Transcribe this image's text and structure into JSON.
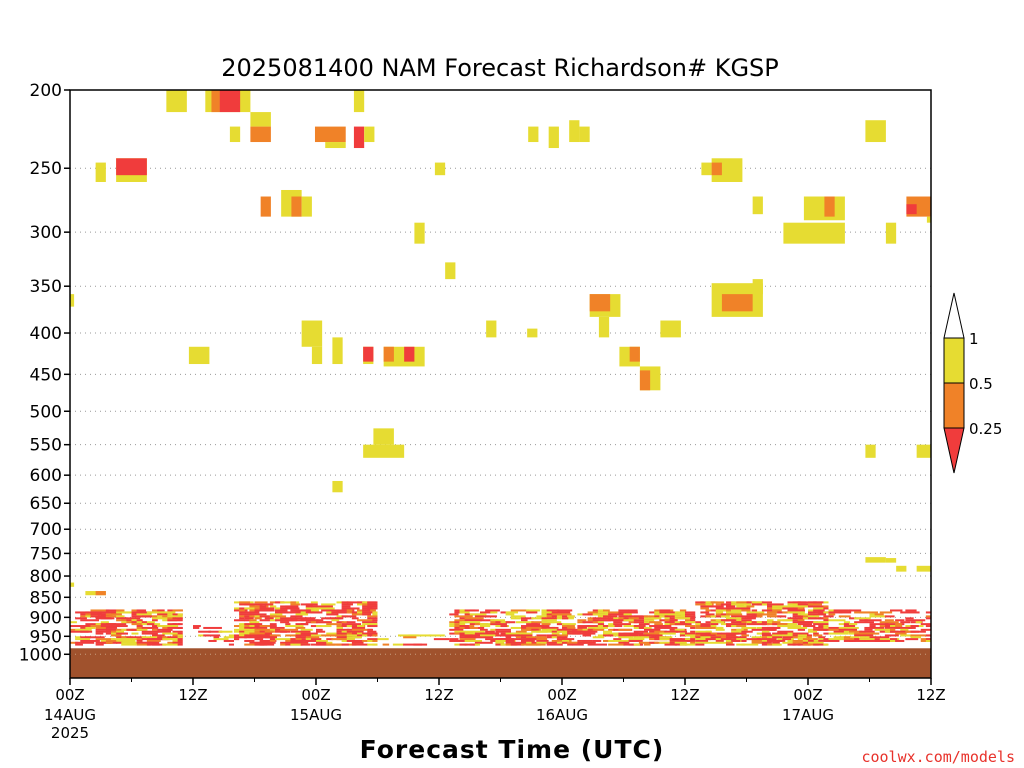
{
  "chart_data": {
    "type": "heatmap",
    "title": "2025081400 NAM Forecast Richardson# KGSP",
    "xlabel": "Forecast Time (UTC)",
    "ylabel": "",
    "ylim": [
      1000,
      200
    ],
    "y_scale": "log-pressure (hPa)",
    "y_ticks": [
      "200",
      "250",
      "300",
      "350",
      "400",
      "450",
      "500",
      "550",
      "600",
      "650",
      "700",
      "750",
      "800",
      "850",
      "900",
      "950",
      "1000"
    ],
    "x_range_hours": [
      0,
      84
    ],
    "x_ticks": [
      {
        "hour": 0,
        "label": "00Z",
        "date": "14AUG",
        "year": "2025"
      },
      {
        "hour": 12,
        "label": "12Z",
        "date": "",
        "year": ""
      },
      {
        "hour": 24,
        "label": "00Z",
        "date": "15AUG",
        "year": ""
      },
      {
        "hour": 36,
        "label": "12Z",
        "date": "",
        "year": ""
      },
      {
        "hour": 48,
        "label": "00Z",
        "date": "16AUG",
        "year": ""
      },
      {
        "hour": 60,
        "label": "12Z",
        "date": "",
        "year": ""
      },
      {
        "hour": 72,
        "label": "00Z",
        "date": "17AUG",
        "year": ""
      },
      {
        "hour": 84,
        "label": "12Z",
        "date": "",
        "year": ""
      }
    ],
    "grid": "dotted horizontal at pressure levels",
    "legend": {
      "placement": "right",
      "levels": [
        "1",
        "0.5",
        "0.25"
      ],
      "colors": {
        "gt1": "#ffffff",
        "0.5-1": "#e6dc32",
        "0.25-0.5": "#f08228",
        "lt0.25": "#f03c3c"
      }
    },
    "surface_color": "#a0522d",
    "surface_pressure": 1000,
    "cells": [
      {
        "h0": 9.4,
        "h1": 11.4,
        "p0": 200,
        "p1": 213,
        "c": "y"
      },
      {
        "h0": 13.2,
        "h1": 17.6,
        "p0": 200,
        "p1": 213,
        "c": "y"
      },
      {
        "h0": 13.8,
        "h1": 14.6,
        "p0": 200,
        "p1": 213,
        "c": "o"
      },
      {
        "h0": 14.6,
        "h1": 16.6,
        "p0": 200,
        "p1": 213,
        "c": "r"
      },
      {
        "h0": 27.7,
        "h1": 28.7,
        "p0": 200,
        "p1": 213,
        "c": "y"
      },
      {
        "h0": 17.6,
        "h1": 19.6,
        "p0": 213,
        "p1": 222,
        "c": "y"
      },
      {
        "h0": 15.6,
        "h1": 16.6,
        "p0": 222,
        "p1": 232,
        "c": "y"
      },
      {
        "h0": 17.6,
        "h1": 19.6,
        "p0": 222,
        "p1": 232,
        "c": "o"
      },
      {
        "h0": 23.9,
        "h1": 26.9,
        "p0": 222,
        "p1": 232,
        "c": "o"
      },
      {
        "h0": 24.9,
        "h1": 26.9,
        "p0": 232,
        "p1": 236,
        "c": "y"
      },
      {
        "h0": 27.7,
        "h1": 28.7,
        "p0": 222,
        "p1": 236,
        "c": "r"
      },
      {
        "h0": 28.7,
        "h1": 29.7,
        "p0": 222,
        "p1": 232,
        "c": "y"
      },
      {
        "h0": 44.7,
        "h1": 45.7,
        "p0": 222,
        "p1": 232,
        "c": "y"
      },
      {
        "h0": 46.7,
        "h1": 47.7,
        "p0": 222,
        "p1": 236,
        "c": "y"
      },
      {
        "h0": 48.7,
        "h1": 49.7,
        "p0": 218,
        "p1": 232,
        "c": "y"
      },
      {
        "h0": 49.7,
        "h1": 50.7,
        "p0": 222,
        "p1": 232,
        "c": "y"
      },
      {
        "h0": 77.6,
        "h1": 79.6,
        "p0": 218,
        "p1": 232,
        "c": "y"
      },
      {
        "h0": 2.5,
        "h1": 3.5,
        "p0": 246,
        "p1": 260,
        "c": "y"
      },
      {
        "h0": 4.5,
        "h1": 7.5,
        "p0": 243,
        "p1": 260,
        "c": "y"
      },
      {
        "h0": 4.5,
        "h1": 7.5,
        "p0": 243,
        "p1": 255,
        "c": "r"
      },
      {
        "h0": 35.6,
        "h1": 36.6,
        "p0": 246,
        "p1": 255,
        "c": "y"
      },
      {
        "h0": 61.6,
        "h1": 62.6,
        "p0": 246,
        "p1": 255,
        "c": "y"
      },
      {
        "h0": 62.6,
        "h1": 65.6,
        "p0": 243,
        "p1": 260,
        "c": "y"
      },
      {
        "h0": 62.6,
        "h1": 63.6,
        "p0": 246,
        "p1": 255,
        "c": "o"
      },
      {
        "h0": 18.6,
        "h1": 19.6,
        "p0": 271,
        "p1": 287,
        "c": "o"
      },
      {
        "h0": 20.6,
        "h1": 22.6,
        "p0": 266,
        "p1": 287,
        "c": "y"
      },
      {
        "h0": 21.6,
        "h1": 22.6,
        "p0": 271,
        "p1": 287,
        "c": "o"
      },
      {
        "h0": 22.6,
        "h1": 23.6,
        "p0": 271,
        "p1": 287,
        "c": "y"
      },
      {
        "h0": 66.6,
        "h1": 67.6,
        "p0": 271,
        "p1": 285,
        "c": "y"
      },
      {
        "h0": 71.6,
        "h1": 75.6,
        "p0": 271,
        "p1": 290,
        "c": "y"
      },
      {
        "h0": 73.6,
        "h1": 74.6,
        "p0": 271,
        "p1": 287,
        "c": "o"
      },
      {
        "h0": 81.6,
        "h1": 84,
        "p0": 271,
        "p1": 287,
        "c": "o"
      },
      {
        "h0": 81.6,
        "h1": 82.6,
        "p0": 277,
        "p1": 285,
        "c": "r"
      },
      {
        "h0": 83.6,
        "h1": 84,
        "p0": 287,
        "p1": 292,
        "c": "y"
      },
      {
        "h0": 33.6,
        "h1": 34.6,
        "p0": 292,
        "p1": 310,
        "c": "y"
      },
      {
        "h0": 69.6,
        "h1": 75.6,
        "p0": 292,
        "p1": 310,
        "c": "y"
      },
      {
        "h0": 79.6,
        "h1": 80.6,
        "p0": 292,
        "p1": 310,
        "c": "y"
      },
      {
        "h0": 36.6,
        "h1": 37.6,
        "p0": 327,
        "p1": 343,
        "c": "y"
      },
      {
        "h0": 0,
        "h1": 0.4,
        "p0": 358,
        "p1": 371,
        "c": "y"
      },
      {
        "h0": 50.7,
        "h1": 53.7,
        "p0": 358,
        "p1": 382,
        "c": "y"
      },
      {
        "h0": 50.7,
        "h1": 52.7,
        "p0": 358,
        "p1": 376,
        "c": "o"
      },
      {
        "h0": 62.6,
        "h1": 67.6,
        "p0": 347,
        "p1": 382,
        "c": "y"
      },
      {
        "h0": 63.6,
        "h1": 66.6,
        "p0": 358,
        "p1": 376,
        "c": "o"
      },
      {
        "h0": 66.6,
        "h1": 67.6,
        "p0": 343,
        "p1": 358,
        "c": "y"
      },
      {
        "h0": 22.6,
        "h1": 24.6,
        "p0": 386,
        "p1": 416,
        "c": "y"
      },
      {
        "h0": 40.6,
        "h1": 41.6,
        "p0": 386,
        "p1": 405,
        "c": "y"
      },
      {
        "h0": 44.6,
        "h1": 45.6,
        "p0": 395,
        "p1": 405,
        "c": "y"
      },
      {
        "h0": 51.6,
        "h1": 52.6,
        "p0": 382,
        "p1": 405,
        "c": "y"
      },
      {
        "h0": 57.6,
        "h1": 59.6,
        "p0": 386,
        "p1": 405,
        "c": "y"
      },
      {
        "h0": 11.6,
        "h1": 13.6,
        "p0": 416,
        "p1": 437,
        "c": "y"
      },
      {
        "h0": 23.6,
        "h1": 24.6,
        "p0": 416,
        "p1": 437,
        "c": "y"
      },
      {
        "h0": 25.6,
        "h1": 26.6,
        "p0": 405,
        "p1": 437,
        "c": "y"
      },
      {
        "h0": 28.6,
        "h1": 29.6,
        "p0": 416,
        "p1": 437,
        "c": "y"
      },
      {
        "h0": 28.6,
        "h1": 29.6,
        "p0": 416,
        "p1": 434,
        "c": "r"
      },
      {
        "h0": 30.6,
        "h1": 34.6,
        "p0": 416,
        "p1": 440,
        "c": "y"
      },
      {
        "h0": 30.6,
        "h1": 31.6,
        "p0": 416,
        "p1": 434,
        "c": "o"
      },
      {
        "h0": 32.6,
        "h1": 33.6,
        "p0": 416,
        "p1": 434,
        "c": "r"
      },
      {
        "h0": 53.6,
        "h1": 55.6,
        "p0": 416,
        "p1": 440,
        "c": "y"
      },
      {
        "h0": 54.6,
        "h1": 55.6,
        "p0": 416,
        "p1": 434,
        "c": "o"
      },
      {
        "h0": 55.6,
        "h1": 57.6,
        "p0": 440,
        "p1": 471,
        "c": "y"
      },
      {
        "h0": 55.6,
        "h1": 56.6,
        "p0": 445,
        "p1": 471,
        "c": "o"
      },
      {
        "h0": 29.6,
        "h1": 31.6,
        "p0": 525,
        "p1": 550,
        "c": "y"
      },
      {
        "h0": 28.6,
        "h1": 32.6,
        "p0": 550,
        "p1": 571,
        "c": "y"
      },
      {
        "h0": 77.6,
        "h1": 78.6,
        "p0": 550,
        "p1": 571,
        "c": "y"
      },
      {
        "h0": 82.6,
        "h1": 84,
        "p0": 550,
        "p1": 571,
        "c": "y"
      },
      {
        "h0": 25.6,
        "h1": 26.6,
        "p0": 610,
        "p1": 630,
        "c": "y"
      },
      {
        "h0": 77.6,
        "h1": 79.6,
        "p0": 758,
        "p1": 770,
        "c": "y"
      },
      {
        "h0": 79.6,
        "h1": 80.6,
        "p0": 760,
        "p1": 770,
        "c": "y"
      },
      {
        "h0": 80.6,
        "h1": 81.6,
        "p0": 777,
        "p1": 790,
        "c": "y"
      },
      {
        "h0": 82.6,
        "h1": 84,
        "p0": 777,
        "p1": 790,
        "c": "y"
      },
      {
        "h0": 0,
        "h1": 0.4,
        "p0": 815,
        "p1": 825,
        "c": "y"
      },
      {
        "h0": 1.5,
        "h1": 3.5,
        "p0": 835,
        "p1": 845,
        "c": "y"
      },
      {
        "h0": 2.5,
        "h1": 3.5,
        "p0": 835,
        "p1": 845,
        "c": "o"
      }
    ],
    "boundary_layer_strips": [
      {
        "h0": 0,
        "h1": 11,
        "p0": 880,
        "p1": 975,
        "density": "high"
      },
      {
        "h0": 12,
        "h1": 16,
        "p0": 920,
        "p1": 975,
        "density": "low"
      },
      {
        "h0": 16,
        "h1": 30,
        "p0": 860,
        "p1": 975,
        "density": "high"
      },
      {
        "h0": 30,
        "h1": 37,
        "p0": 940,
        "p1": 975,
        "density": "low"
      },
      {
        "h0": 37,
        "h1": 61,
        "p0": 880,
        "p1": 975,
        "density": "high"
      },
      {
        "h0": 61,
        "h1": 74,
        "p0": 860,
        "p1": 975,
        "density": "high"
      },
      {
        "h0": 74,
        "h1": 84,
        "p0": 880,
        "p1": 965,
        "density": "medium"
      }
    ]
  },
  "labels": {
    "credit": "coolwx.com/models"
  }
}
